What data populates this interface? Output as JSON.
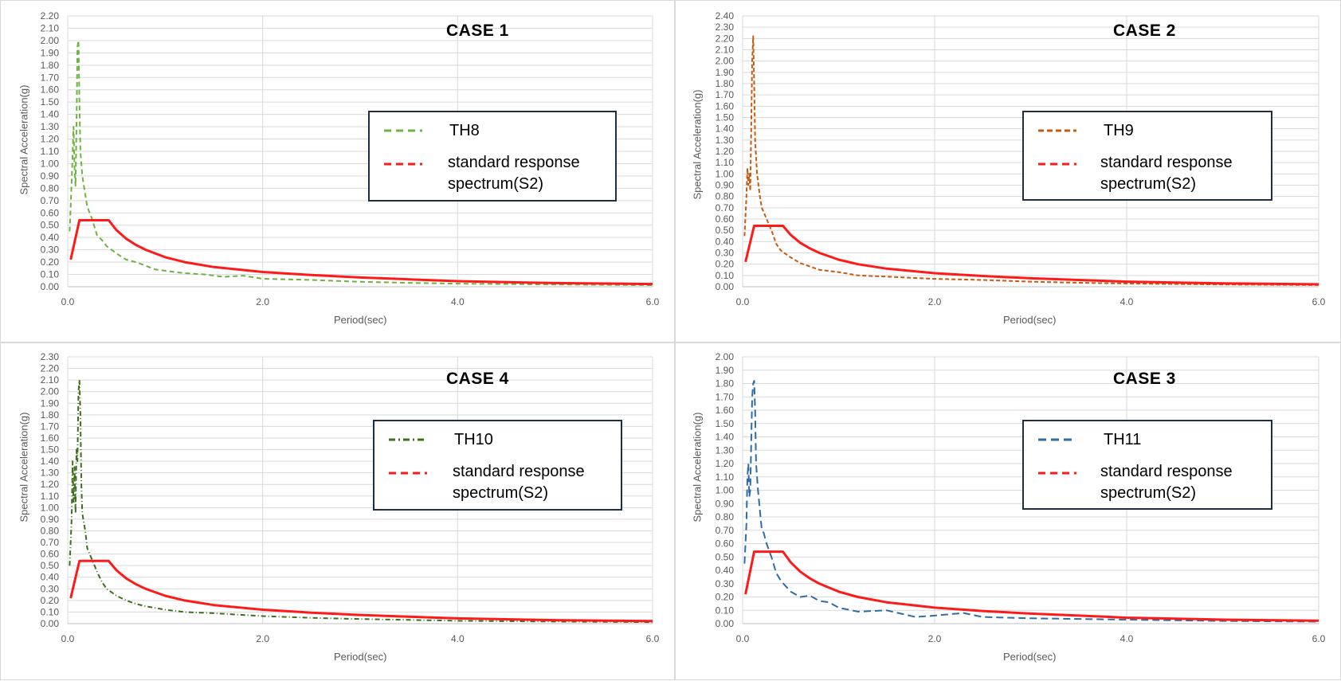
{
  "colors": {
    "standard": "#ff1a1a",
    "grid": "#d9d9d9",
    "axis_text": "#595959",
    "legend_border": "#1f2f3f"
  },
  "chart_data": [
    {
      "type": "line",
      "title": "CASE 1",
      "xlabel": "Period(sec)",
      "ylabel": "Spectral Acceleration(g)",
      "xlim": [
        0,
        6
      ],
      "ylim": [
        0,
        2.2
      ],
      "xticks": [
        "0.0",
        "2.0",
        "4.0",
        "6.0"
      ],
      "yticks": [
        "0.00",
        "0.10",
        "0.20",
        "0.30",
        "0.40",
        "0.50",
        "0.60",
        "0.70",
        "0.80",
        "0.90",
        "1.00",
        "1.10",
        "1.20",
        "1.30",
        "1.40",
        "1.50",
        "1.60",
        "1.70",
        "1.80",
        "1.90",
        "2.00",
        "2.10",
        "2.20"
      ],
      "grid": true,
      "legend_position": "right",
      "legend": [
        "TH8",
        "standard response spectrum(S2)"
      ],
      "series": [
        {
          "name": "TH8",
          "color": "#6db33f",
          "dash": "6,4",
          "x": [
            0.02,
            0.04,
            0.06,
            0.07,
            0.08,
            0.09,
            0.1,
            0.11,
            0.12,
            0.13,
            0.15,
            0.18,
            0.2,
            0.25,
            0.3,
            0.35,
            0.4,
            0.5,
            0.6,
            0.7,
            0.8,
            0.9,
            1.0,
            1.2,
            1.4,
            1.6,
            1.8,
            2.0,
            2.5,
            3.0,
            3.5,
            4.0,
            5.0,
            6.0
          ],
          "y": [
            0.45,
            0.85,
            1.3,
            0.95,
            0.82,
            1.3,
            1.95,
            2.0,
            1.5,
            1.1,
            0.9,
            0.75,
            0.65,
            0.55,
            0.42,
            0.38,
            0.33,
            0.27,
            0.22,
            0.2,
            0.17,
            0.14,
            0.13,
            0.11,
            0.1,
            0.08,
            0.09,
            0.065,
            0.055,
            0.04,
            0.032,
            0.025,
            0.018,
            0.013
          ]
        },
        {
          "name": "standard response spectrum(S2)",
          "color": "#ff1a1a",
          "dash": "",
          "x": [
            0.03,
            0.12,
            0.2,
            0.3,
            0.42,
            0.5,
            0.6,
            0.7,
            0.8,
            1.0,
            1.2,
            1.5,
            2.0,
            2.5,
            3.0,
            3.5,
            4.0,
            5.0,
            6.0
          ],
          "y": [
            0.22,
            0.54,
            0.54,
            0.54,
            0.54,
            0.46,
            0.39,
            0.34,
            0.3,
            0.24,
            0.2,
            0.16,
            0.12,
            0.095,
            0.075,
            0.06,
            0.045,
            0.03,
            0.022
          ]
        }
      ]
    },
    {
      "type": "line",
      "title": "CASE 2",
      "xlabel": "Period(sec)",
      "ylabel": "Spectral Acceleration(g)",
      "xlim": [
        0,
        6
      ],
      "ylim": [
        0,
        2.4
      ],
      "xticks": [
        "0.0",
        "2.0",
        "4.0",
        "6.0"
      ],
      "yticks": [
        "0.00",
        "0.10",
        "0.20",
        "0.30",
        "0.40",
        "0.50",
        "0.60",
        "0.70",
        "0.80",
        "0.90",
        "1.00",
        "1.10",
        "1.20",
        "1.30",
        "1.40",
        "1.50",
        "1.60",
        "1.70",
        "1.80",
        "1.90",
        "2.00",
        "2.10",
        "2.20",
        "2.30",
        "2.40"
      ],
      "grid": true,
      "legend_position": "right",
      "legend": [
        "TH9",
        "standard response spectrum(S2)"
      ],
      "series": [
        {
          "name": "TH9",
          "color": "#c55a11",
          "dash": "5,3",
          "x": [
            0.02,
            0.04,
            0.05,
            0.06,
            0.07,
            0.08,
            0.09,
            0.1,
            0.11,
            0.12,
            0.13,
            0.15,
            0.18,
            0.2,
            0.25,
            0.3,
            0.35,
            0.4,
            0.5,
            0.6,
            0.7,
            0.8,
            1.0,
            1.2,
            1.5,
            2.0,
            2.5,
            3.0,
            3.5,
            4.0,
            5.0,
            6.0
          ],
          "y": [
            0.45,
            0.8,
            1.05,
            0.9,
            1.0,
            0.85,
            1.4,
            2.0,
            2.22,
            1.8,
            1.3,
            1.0,
            0.8,
            0.7,
            0.6,
            0.5,
            0.38,
            0.32,
            0.26,
            0.21,
            0.18,
            0.15,
            0.13,
            0.1,
            0.09,
            0.07,
            0.06,
            0.045,
            0.035,
            0.028,
            0.02,
            0.015
          ]
        },
        {
          "name": "standard response spectrum(S2)",
          "color": "#ff1a1a",
          "dash": "",
          "x": [
            0.03,
            0.12,
            0.2,
            0.3,
            0.42,
            0.5,
            0.6,
            0.7,
            0.8,
            1.0,
            1.2,
            1.5,
            2.0,
            2.5,
            3.0,
            3.5,
            4.0,
            5.0,
            6.0
          ],
          "y": [
            0.22,
            0.54,
            0.54,
            0.54,
            0.54,
            0.46,
            0.39,
            0.34,
            0.3,
            0.24,
            0.2,
            0.16,
            0.12,
            0.095,
            0.075,
            0.06,
            0.045,
            0.03,
            0.022
          ]
        }
      ]
    },
    {
      "type": "line",
      "title": "CASE 4",
      "xlabel": "Period(sec)",
      "ylabel": "Spectral Acceleration(g)",
      "xlim": [
        0,
        6
      ],
      "ylim": [
        0,
        2.3
      ],
      "xticks": [
        "0.0",
        "2.0",
        "4.0",
        "6.0"
      ],
      "yticks": [
        "0.00",
        "0.10",
        "0.20",
        "0.30",
        "0.40",
        "0.50",
        "0.60",
        "0.70",
        "0.80",
        "0.90",
        "1.00",
        "1.10",
        "1.20",
        "1.30",
        "1.40",
        "1.50",
        "1.60",
        "1.70",
        "1.80",
        "1.90",
        "2.00",
        "2.10",
        "2.20",
        "2.30"
      ],
      "grid": true,
      "legend_position": "right",
      "legend": [
        "TH10",
        "standard response spectrum(S2)"
      ],
      "series": [
        {
          "name": "TH10",
          "color": "#3c6e1e",
          "dash": "6,3,1,3",
          "x": [
            0.02,
            0.04,
            0.05,
            0.06,
            0.07,
            0.08,
            0.09,
            0.1,
            0.11,
            0.12,
            0.13,
            0.14,
            0.15,
            0.18,
            0.2,
            0.25,
            0.3,
            0.35,
            0.4,
            0.5,
            0.6,
            0.7,
            0.8,
            1.0,
            1.2,
            1.5,
            2.0,
            2.5,
            3.0,
            3.5,
            4.0,
            5.0,
            6.0
          ],
          "y": [
            0.5,
            0.9,
            1.4,
            1.05,
            1.35,
            0.95,
            1.5,
            1.4,
            2.0,
            2.1,
            1.8,
            1.2,
            0.95,
            0.8,
            0.65,
            0.55,
            0.45,
            0.36,
            0.3,
            0.24,
            0.2,
            0.17,
            0.15,
            0.12,
            0.1,
            0.09,
            0.065,
            0.05,
            0.04,
            0.032,
            0.025,
            0.018,
            0.013
          ]
        },
        {
          "name": "standard response spectrum(S2)",
          "color": "#ff1a1a",
          "dash": "",
          "x": [
            0.03,
            0.12,
            0.2,
            0.3,
            0.42,
            0.5,
            0.6,
            0.7,
            0.8,
            1.0,
            1.2,
            1.5,
            2.0,
            2.5,
            3.0,
            3.5,
            4.0,
            5.0,
            6.0
          ],
          "y": [
            0.22,
            0.54,
            0.54,
            0.54,
            0.54,
            0.46,
            0.39,
            0.34,
            0.3,
            0.24,
            0.2,
            0.16,
            0.12,
            0.095,
            0.075,
            0.06,
            0.045,
            0.03,
            0.022
          ]
        }
      ]
    },
    {
      "type": "line",
      "title": "CASE 3",
      "xlabel": "Period(sec)",
      "ylabel": "Spectral Acceleration(g)",
      "xlim": [
        0,
        6
      ],
      "ylim": [
        0,
        2.0
      ],
      "xticks": [
        "0.0",
        "2.0",
        "4.0",
        "6.0"
      ],
      "yticks": [
        "0.00",
        "0.10",
        "0.20",
        "0.30",
        "0.40",
        "0.50",
        "0.60",
        "0.70",
        "0.80",
        "0.90",
        "1.00",
        "1.10",
        "1.20",
        "1.30",
        "1.40",
        "1.50",
        "1.60",
        "1.70",
        "1.80",
        "1.90",
        "2.00"
      ],
      "grid": true,
      "legend_position": "right",
      "legend": [
        "TH11",
        "standard response spectrum(S2)"
      ],
      "series": [
        {
          "name": "TH11",
          "color": "#2e6da4",
          "dash": "9,5",
          "x": [
            0.02,
            0.04,
            0.05,
            0.06,
            0.07,
            0.08,
            0.09,
            0.1,
            0.11,
            0.12,
            0.13,
            0.14,
            0.16,
            0.18,
            0.2,
            0.22,
            0.25,
            0.3,
            0.35,
            0.4,
            0.5,
            0.6,
            0.7,
            0.8,
            0.9,
            1.0,
            1.2,
            1.5,
            1.8,
            2.0,
            2.3,
            2.5,
            3.0,
            3.5,
            4.0,
            5.0,
            6.0
          ],
          "y": [
            0.45,
            0.75,
            1.1,
            1.2,
            0.95,
            1.0,
            1.35,
            1.7,
            1.8,
            1.82,
            1.6,
            1.2,
            1.0,
            0.85,
            0.7,
            0.68,
            0.6,
            0.5,
            0.38,
            0.32,
            0.24,
            0.2,
            0.21,
            0.17,
            0.16,
            0.12,
            0.09,
            0.1,
            0.05,
            0.06,
            0.08,
            0.05,
            0.04,
            0.035,
            0.03,
            0.02,
            0.015
          ]
        },
        {
          "name": "standard response spectrum(S2)",
          "color": "#ff1a1a",
          "dash": "",
          "x": [
            0.03,
            0.12,
            0.2,
            0.3,
            0.42,
            0.5,
            0.6,
            0.7,
            0.8,
            1.0,
            1.2,
            1.5,
            2.0,
            2.5,
            3.0,
            3.5,
            4.0,
            5.0,
            6.0
          ],
          "y": [
            0.22,
            0.54,
            0.54,
            0.54,
            0.54,
            0.46,
            0.39,
            0.34,
            0.3,
            0.24,
            0.2,
            0.16,
            0.12,
            0.095,
            0.075,
            0.06,
            0.045,
            0.03,
            0.022
          ]
        }
      ]
    }
  ]
}
